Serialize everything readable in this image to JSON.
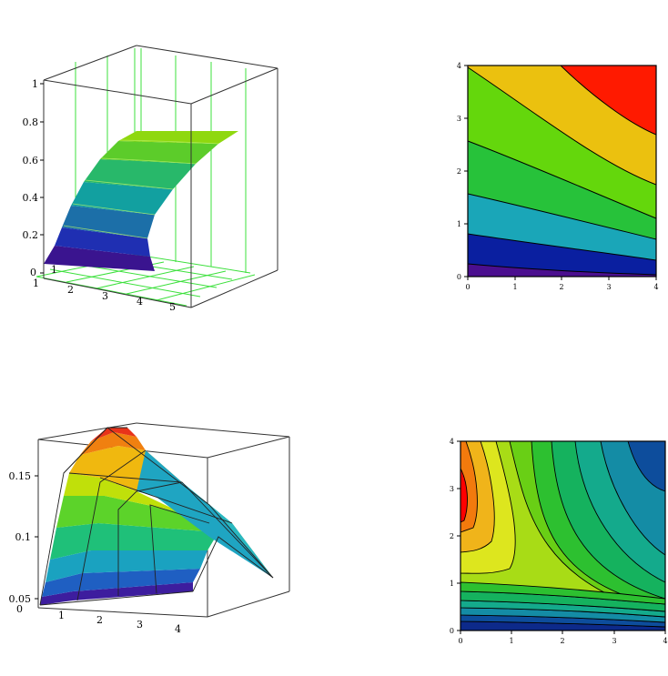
{
  "chart_data": [
    {
      "type": "surface",
      "id": "surface-top-left",
      "axis_ticks": {
        "z": [
          "0",
          "0.2",
          "0.4",
          "0.6",
          "0.8",
          "1"
        ],
        "x": [
          "1",
          "2",
          "3",
          "4",
          "5"
        ],
        "y": [
          "1"
        ]
      },
      "zlim": [
        0,
        1
      ],
      "grid": true,
      "surface_colors": [
        "#3a148f",
        "#1f2fb2",
        "#1c6fa8",
        "#12a0a0",
        "#28b86a",
        "#5ccc2a",
        "#8fd80f"
      ]
    },
    {
      "type": "contour",
      "id": "contour-top-right",
      "x_ticks": [
        "0",
        "1",
        "2",
        "3",
        "4"
      ],
      "y_ticks": [
        "0",
        "1",
        "2",
        "3",
        "4"
      ],
      "xlim": [
        0,
        4
      ],
      "ylim": [
        0,
        4
      ],
      "band_colors": [
        "#4b0f8f",
        "#0a1fa0",
        "#1aa6b8",
        "#27c23a",
        "#64d70c",
        "#ebc10f",
        "#ff1a00"
      ]
    },
    {
      "type": "surface",
      "id": "surface-bottom-left",
      "axis_ticks": {
        "z": [
          "0.05",
          "0.1",
          "0.15"
        ],
        "x": [
          "1",
          "2",
          "3",
          "4"
        ],
        "y": [
          "0"
        ]
      },
      "zlim": [
        0.05,
        0.18
      ],
      "grid": false,
      "surface_colors": [
        "#3d1d9e",
        "#1f5fc2",
        "#1aa2c0",
        "#1fc079",
        "#5cd32a",
        "#c0e00a",
        "#f0b80f",
        "#f08010",
        "#e8331a"
      ]
    },
    {
      "type": "contour",
      "id": "contour-bottom-right",
      "x_ticks": [
        "0",
        "1",
        "2",
        "3",
        "4"
      ],
      "y_ticks": [
        "0",
        "1",
        "2",
        "3",
        "4"
      ],
      "xlim": [
        0,
        4
      ],
      "ylim": [
        0,
        4
      ],
      "band_colors": [
        "#ff0000",
        "#f27a0d",
        "#f0b41a",
        "#dde61e",
        "#a8dc16",
        "#69cf15",
        "#2dc030",
        "#15b25e",
        "#14aa8c",
        "#148ca5",
        "#0d4d9c"
      ]
    }
  ]
}
